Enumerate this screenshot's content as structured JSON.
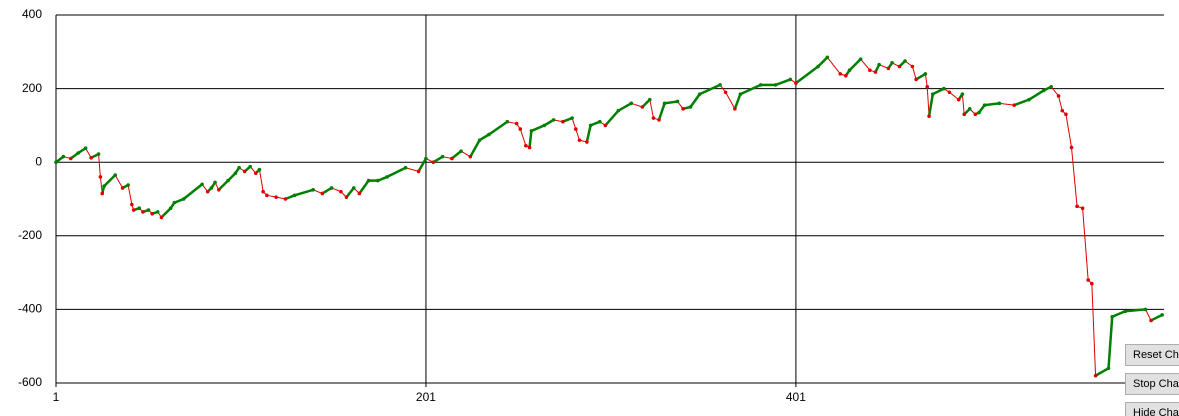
{
  "chart_data": {
    "type": "line",
    "x": [
      1,
      5,
      9,
      13,
      17,
      20,
      24,
      25,
      26,
      27,
      33,
      37,
      40,
      42,
      43,
      46,
      48,
      51,
      53,
      56,
      58,
      63,
      65,
      70,
      80,
      83,
      85,
      87,
      89,
      94,
      98,
      100,
      103,
      106,
      109,
      111,
      113,
      115,
      120,
      125,
      130,
      140,
      145,
      150,
      155,
      158,
      162,
      165,
      170,
      175,
      180,
      190,
      197,
      201,
      205,
      210,
      215,
      220,
      225,
      230,
      235,
      245,
      250,
      252,
      255,
      257,
      258,
      265,
      270,
      275,
      280,
      282,
      284,
      288,
      290,
      295,
      298,
      305,
      312,
      318,
      322,
      324,
      327,
      330,
      337,
      340,
      344,
      349,
      360,
      363,
      368,
      371,
      382,
      390,
      398,
      401,
      413,
      418,
      425,
      428,
      430,
      436,
      441,
      444,
      446,
      451,
      453,
      457,
      460,
      464,
      466,
      471,
      472,
      473,
      475,
      481,
      484,
      489,
      491,
      492,
      495,
      498,
      500,
      503,
      511,
      519,
      527,
      535,
      539,
      543,
      545,
      547,
      550,
      553,
      556,
      559,
      561,
      563,
      570,
      572,
      579,
      590,
      593,
      599
    ],
    "values": [
      0,
      15,
      10,
      25,
      38,
      12,
      22,
      -40,
      -85,
      -65,
      -35,
      -70,
      -62,
      -115,
      -130,
      -125,
      -135,
      -130,
      -140,
      -135,
      -150,
      -125,
      -110,
      -100,
      -60,
      -80,
      -70,
      -55,
      -75,
      -50,
      -30,
      -15,
      -25,
      -12,
      -30,
      -20,
      -80,
      -90,
      -95,
      -100,
      -90,
      -75,
      -85,
      -70,
      -80,
      -95,
      -70,
      -85,
      -50,
      -50,
      -40,
      -15,
      -25,
      10,
      0,
      15,
      10,
      30,
      15,
      60,
      75,
      110,
      105,
      90,
      45,
      40,
      85,
      100,
      115,
      110,
      120,
      90,
      60,
      55,
      100,
      110,
      100,
      140,
      160,
      150,
      170,
      120,
      115,
      160,
      165,
      145,
      150,
      185,
      210,
      190,
      145,
      185,
      210,
      210,
      225,
      215,
      260,
      285,
      240,
      235,
      250,
      280,
      250,
      245,
      265,
      255,
      270,
      260,
      275,
      260,
      225,
      240,
      205,
      125,
      185,
      200,
      190,
      170,
      185,
      130,
      145,
      130,
      135,
      155,
      160,
      155,
      170,
      195,
      205,
      180,
      140,
      130,
      40,
      -120,
      -125,
      -320,
      -330,
      -580,
      -560,
      -420,
      -405,
      -400,
      -430,
      -415
    ],
    "up_color": "#008000",
    "down_color": "#e00000",
    "xlim": [
      1,
      600
    ],
    "xticks": [
      1,
      201,
      401
    ],
    "ylim": [
      -600,
      400
    ],
    "yticks": [
      -600,
      -400,
      -200,
      0,
      200,
      400
    ],
    "grid": true
  },
  "buttons": [
    "Reset Cha",
    "Stop Cha",
    "Hide Cha"
  ]
}
